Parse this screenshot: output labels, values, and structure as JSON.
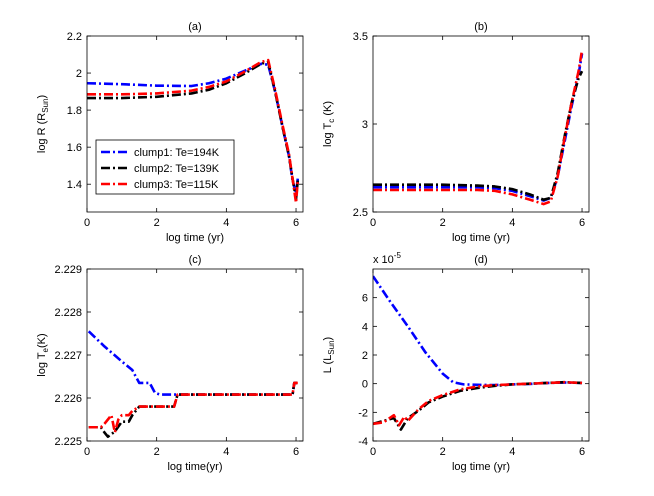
{
  "figure_title": "",
  "chart_data": [
    {
      "type": "line",
      "title": "(a)",
      "xlabel": "log time (yr)",
      "ylabel": "log R (R",
      "ylabel_sub": "Sun",
      "ylabel_end": ")",
      "xlim": [
        0,
        6.2
      ],
      "ylim": [
        1.25,
        2.2
      ],
      "xticks": [
        0,
        2,
        4,
        6
      ],
      "xtick_labels": [
        "0",
        "2",
        "4",
        "6"
      ],
      "yticks": [
        1.4,
        1.6,
        1.8,
        2.0,
        2.2
      ],
      "ytick_labels": [
        "1.4",
        "1.6",
        "1.8",
        "2",
        "2.2"
      ],
      "legend": {
        "placement": "lower-left",
        "entries": [
          "clump1: Te=194K",
          "clump2: Te=139K",
          "clump3: Te=115K"
        ]
      },
      "series": [
        {
          "name": "clump1: Te=194K",
          "color": "#0000ff",
          "x": [
            0,
            1,
            2,
            3,
            3.5,
            4,
            4.5,
            5,
            5.2,
            5.4,
            5.6,
            5.8,
            5.9,
            6,
            6.05
          ],
          "y": [
            1.945,
            1.94,
            1.932,
            1.93,
            1.945,
            1.97,
            2.01,
            2.05,
            2.045,
            1.9,
            1.72,
            1.55,
            1.42,
            1.35,
            1.43
          ]
        },
        {
          "name": "clump2: Te=139K",
          "color": "#000000",
          "x": [
            0,
            1,
            2,
            3,
            3.5,
            4,
            4.5,
            5,
            5.2,
            5.4,
            5.6,
            5.8,
            5.9,
            6,
            6.05
          ],
          "y": [
            1.865,
            1.865,
            1.872,
            1.89,
            1.91,
            1.945,
            1.995,
            2.05,
            2.06,
            1.9,
            1.72,
            1.55,
            1.43,
            1.32,
            1.42
          ]
        },
        {
          "name": "clump3: Te=115K",
          "color": "#ff0000",
          "x": [
            0,
            1,
            2,
            3,
            3.5,
            4,
            4.5,
            5,
            5.2,
            5.4,
            5.6,
            5.8,
            5.9,
            6,
            6.05
          ],
          "y": [
            1.885,
            1.885,
            1.89,
            1.905,
            1.925,
            1.955,
            2.005,
            2.06,
            2.07,
            1.91,
            1.73,
            1.56,
            1.43,
            1.3,
            1.42
          ]
        }
      ]
    },
    {
      "type": "line",
      "title": "(b)",
      "xlabel": "log time (yr)",
      "ylabel": "log T",
      "ylabel_sub": "c",
      "ylabel_end": " (K)",
      "xlim": [
        0,
        6.2
      ],
      "ylim": [
        2.5,
        3.5
      ],
      "xticks": [
        0,
        2,
        4,
        6
      ],
      "xtick_labels": [
        "0",
        "2",
        "4",
        "6"
      ],
      "yticks": [
        2.5,
        3.0,
        3.5
      ],
      "ytick_labels": [
        "2.5",
        "3",
        "3.5"
      ],
      "series": [
        {
          "name": "clump1",
          "color": "#0000ff",
          "x": [
            0,
            1,
            2,
            3,
            3.5,
            4,
            4.5,
            4.9,
            5.1,
            5.3,
            5.5,
            5.7,
            5.9,
            6
          ],
          "y": [
            2.64,
            2.64,
            2.64,
            2.64,
            2.635,
            2.62,
            2.59,
            2.565,
            2.58,
            2.7,
            2.9,
            3.1,
            3.28,
            3.4
          ]
        },
        {
          "name": "clump2",
          "color": "#000000",
          "x": [
            0,
            1,
            2,
            3,
            3.5,
            4,
            4.5,
            4.9,
            5.1,
            5.3,
            5.5,
            5.7,
            5.9,
            6
          ],
          "y": [
            2.655,
            2.655,
            2.655,
            2.65,
            2.645,
            2.63,
            2.6,
            2.57,
            2.58,
            2.72,
            2.93,
            3.12,
            3.26,
            3.3
          ]
        },
        {
          "name": "clump3",
          "color": "#ff0000",
          "x": [
            0,
            1,
            2,
            3,
            3.5,
            4,
            4.5,
            4.9,
            5.1,
            5.3,
            5.5,
            5.7,
            5.9,
            6
          ],
          "y": [
            2.625,
            2.625,
            2.625,
            2.625,
            2.62,
            2.6,
            2.57,
            2.545,
            2.56,
            2.7,
            2.92,
            3.12,
            3.3,
            3.42
          ]
        }
      ]
    },
    {
      "type": "line",
      "title": "(c)",
      "xlabel": "log time(yr)",
      "ylabel": "log T",
      "ylabel_sub": "e",
      "ylabel_end": "(K)",
      "xlim": [
        0,
        6.2
      ],
      "ylim": [
        2.225,
        2.229
      ],
      "xticks": [
        0,
        2,
        4,
        6
      ],
      "xtick_labels": [
        "0",
        "2",
        "4",
        "6"
      ],
      "yticks": [
        2.225,
        2.226,
        2.227,
        2.228,
        2.229
      ],
      "ytick_labels": [
        "2.225",
        "2.226",
        "2.227",
        "2.228",
        "2.229"
      ],
      "series": [
        {
          "name": "clump1",
          "color": "#0000ff",
          "x": [
            0.05,
            0.5,
            1.0,
            1.3,
            1.5,
            1.8,
            1.95,
            2.1,
            2.5,
            3,
            4,
            5,
            5.9,
            5.95,
            6.05
          ],
          "y": [
            2.22755,
            2.2272,
            2.22685,
            2.22665,
            2.22635,
            2.22635,
            2.22612,
            2.22608,
            2.22608,
            2.22608,
            2.22608,
            2.22608,
            2.22608,
            2.22635,
            2.22635
          ]
        },
        {
          "name": "clump2",
          "color": "#000000",
          "x": [
            0.05,
            0.4,
            0.5,
            0.6,
            0.8,
            1.0,
            1.2,
            1.3,
            1.5,
            1.8,
            2.2,
            2.5,
            2.6,
            3,
            4,
            5,
            5.9,
            5.95,
            6.05
          ],
          "y": [
            2.22532,
            2.22532,
            2.2252,
            2.2251,
            2.22522,
            2.22545,
            2.22545,
            2.2256,
            2.2258,
            2.2258,
            2.2258,
            2.2258,
            2.22608,
            2.22608,
            2.22608,
            2.22608,
            2.22608,
            2.22635,
            2.22635
          ]
        },
        {
          "name": "clump3",
          "color": "#ff0000",
          "x": [
            0.05,
            0.4,
            0.5,
            0.7,
            0.8,
            0.9,
            1.0,
            1.2,
            1.3,
            1.5,
            1.8,
            2.2,
            2.5,
            2.6,
            3,
            4,
            5,
            5.9,
            5.95,
            6.05
          ],
          "y": [
            2.22532,
            2.22532,
            2.2254,
            2.2256,
            2.2252,
            2.2255,
            2.2256,
            2.2256,
            2.2257,
            2.2258,
            2.2258,
            2.2258,
            2.2258,
            2.22608,
            2.22608,
            2.22608,
            2.22608,
            2.22608,
            2.22635,
            2.22635
          ]
        }
      ]
    },
    {
      "type": "line",
      "title": "(d)",
      "xlabel": "log time (yr)",
      "ylabel": "L  (L",
      "ylabel_sub": "Sun",
      "ylabel_end": ")",
      "exponent_label": "x 10",
      "exponent_power": "-5",
      "xlim": [
        0,
        6.2
      ],
      "ylim": [
        -4,
        8
      ],
      "xticks": [
        0,
        2,
        4,
        6
      ],
      "xtick_labels": [
        "0",
        "2",
        "4",
        "6"
      ],
      "yticks": [
        -4,
        -2,
        0,
        2,
        4,
        6
      ],
      "ytick_labels": [
        "-4",
        "-2",
        "0",
        "2",
        "4",
        "6"
      ],
      "series": [
        {
          "name": "clump1",
          "color": "#0000ff",
          "x": [
            0,
            0.5,
            1,
            1.5,
            2,
            2.3,
            2.6,
            3,
            3.5,
            4,
            4.5,
            5,
            5.5,
            6
          ],
          "y": [
            7.5,
            5.7,
            4.0,
            2.2,
            0.7,
            0.1,
            -0.05,
            -0.08,
            -0.1,
            -0.05,
            -0.02,
            0.05,
            0.08,
            0.05
          ]
        },
        {
          "name": "clump2",
          "color": "#000000",
          "x": [
            0,
            0.3,
            0.6,
            0.8,
            1.0,
            1.3,
            1.6,
            2,
            2.5,
            3,
            3.5,
            4,
            4.5,
            5,
            5.5,
            6
          ],
          "y": [
            -2.8,
            -2.6,
            -2.4,
            -3.2,
            -2.4,
            -1.9,
            -1.3,
            -0.9,
            -0.5,
            -0.3,
            -0.15,
            -0.05,
            0.0,
            0.05,
            0.1,
            0.05
          ]
        },
        {
          "name": "clump3",
          "color": "#ff0000",
          "x": [
            0,
            0.3,
            0.6,
            0.75,
            0.9,
            1.0,
            1.3,
            1.6,
            2,
            2.5,
            3,
            3.5,
            4,
            4.5,
            5,
            5.5,
            6
          ],
          "y": [
            -2.8,
            -2.7,
            -2.2,
            -2.9,
            -2.3,
            -2.6,
            -1.8,
            -1.2,
            -0.8,
            -0.4,
            -0.2,
            -0.1,
            -0.05,
            0.0,
            0.05,
            0.1,
            0.05
          ]
        }
      ]
    }
  ]
}
